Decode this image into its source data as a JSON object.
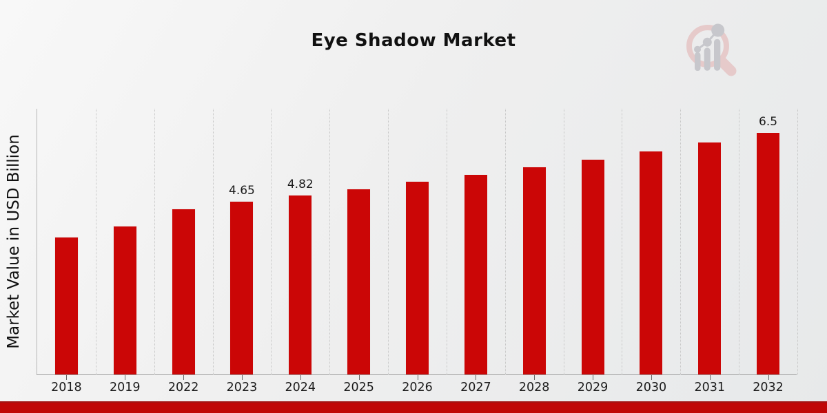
{
  "page": {
    "title": "Eye Shadow Market"
  },
  "chart_data": {
    "type": "bar",
    "title": "Eye Shadow Market",
    "xlabel": "",
    "ylabel": "Market Value in USD Billion",
    "categories": [
      "2018",
      "2019",
      "2022",
      "2023",
      "2024",
      "2025",
      "2026",
      "2027",
      "2028",
      "2029",
      "2030",
      "2031",
      "2032"
    ],
    "values": [
      3.69,
      3.98,
      4.45,
      4.65,
      4.82,
      4.99,
      5.18,
      5.37,
      5.57,
      5.78,
      6.01,
      6.24,
      6.5
    ],
    "data_labels": {
      "2023": "4.65",
      "2024": "4.82",
      "2032": "6.5"
    },
    "bar_color": "#cb0606",
    "ylim": [
      0,
      7.15
    ],
    "grid": "vertical-dotted",
    "legend": "none"
  },
  "watermark": {
    "icon": "magnifier-bar-chart-logo",
    "ring_color": "#e6caca",
    "bars_color": "#c7c7cc"
  },
  "footer": {
    "band_color": "#c00707"
  }
}
